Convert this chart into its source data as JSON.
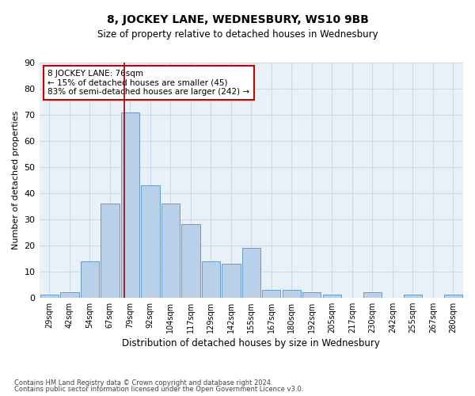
{
  "title1": "8, JOCKEY LANE, WEDNESBURY, WS10 9BB",
  "title2": "Size of property relative to detached houses in Wednesbury",
  "xlabel": "Distribution of detached houses by size in Wednesbury",
  "ylabel": "Number of detached properties",
  "categories": [
    "29sqm",
    "42sqm",
    "54sqm",
    "67sqm",
    "79sqm",
    "92sqm",
    "104sqm",
    "117sqm",
    "129sqm",
    "142sqm",
    "155sqm",
    "167sqm",
    "180sqm",
    "192sqm",
    "205sqm",
    "217sqm",
    "230sqm",
    "242sqm",
    "255sqm",
    "267sqm",
    "280sqm"
  ],
  "values": [
    1,
    2,
    14,
    36,
    71,
    43,
    36,
    28,
    14,
    13,
    19,
    3,
    3,
    2,
    1,
    0,
    2,
    0,
    1,
    0,
    1
  ],
  "bar_color": "#b8d0e8",
  "bar_edge_color": "#6699cc",
  "grid_color": "#ccdaeb",
  "background_color": "#e8f0f8",
  "vline_color": "#990000",
  "annotation_text": "8 JOCKEY LANE: 76sqm\n← 15% of detached houses are smaller (45)\n83% of semi-detached houses are larger (242) →",
  "annotation_box_color": "#ffffff",
  "annotation_box_edge": "#cc0000",
  "ylim": [
    0,
    90
  ],
  "yticks": [
    0,
    10,
    20,
    30,
    40,
    50,
    60,
    70,
    80,
    90
  ],
  "footnote1": "Contains HM Land Registry data © Crown copyright and database right 2024.",
  "footnote2": "Contains public sector information licensed under the Open Government Licence v3.0."
}
